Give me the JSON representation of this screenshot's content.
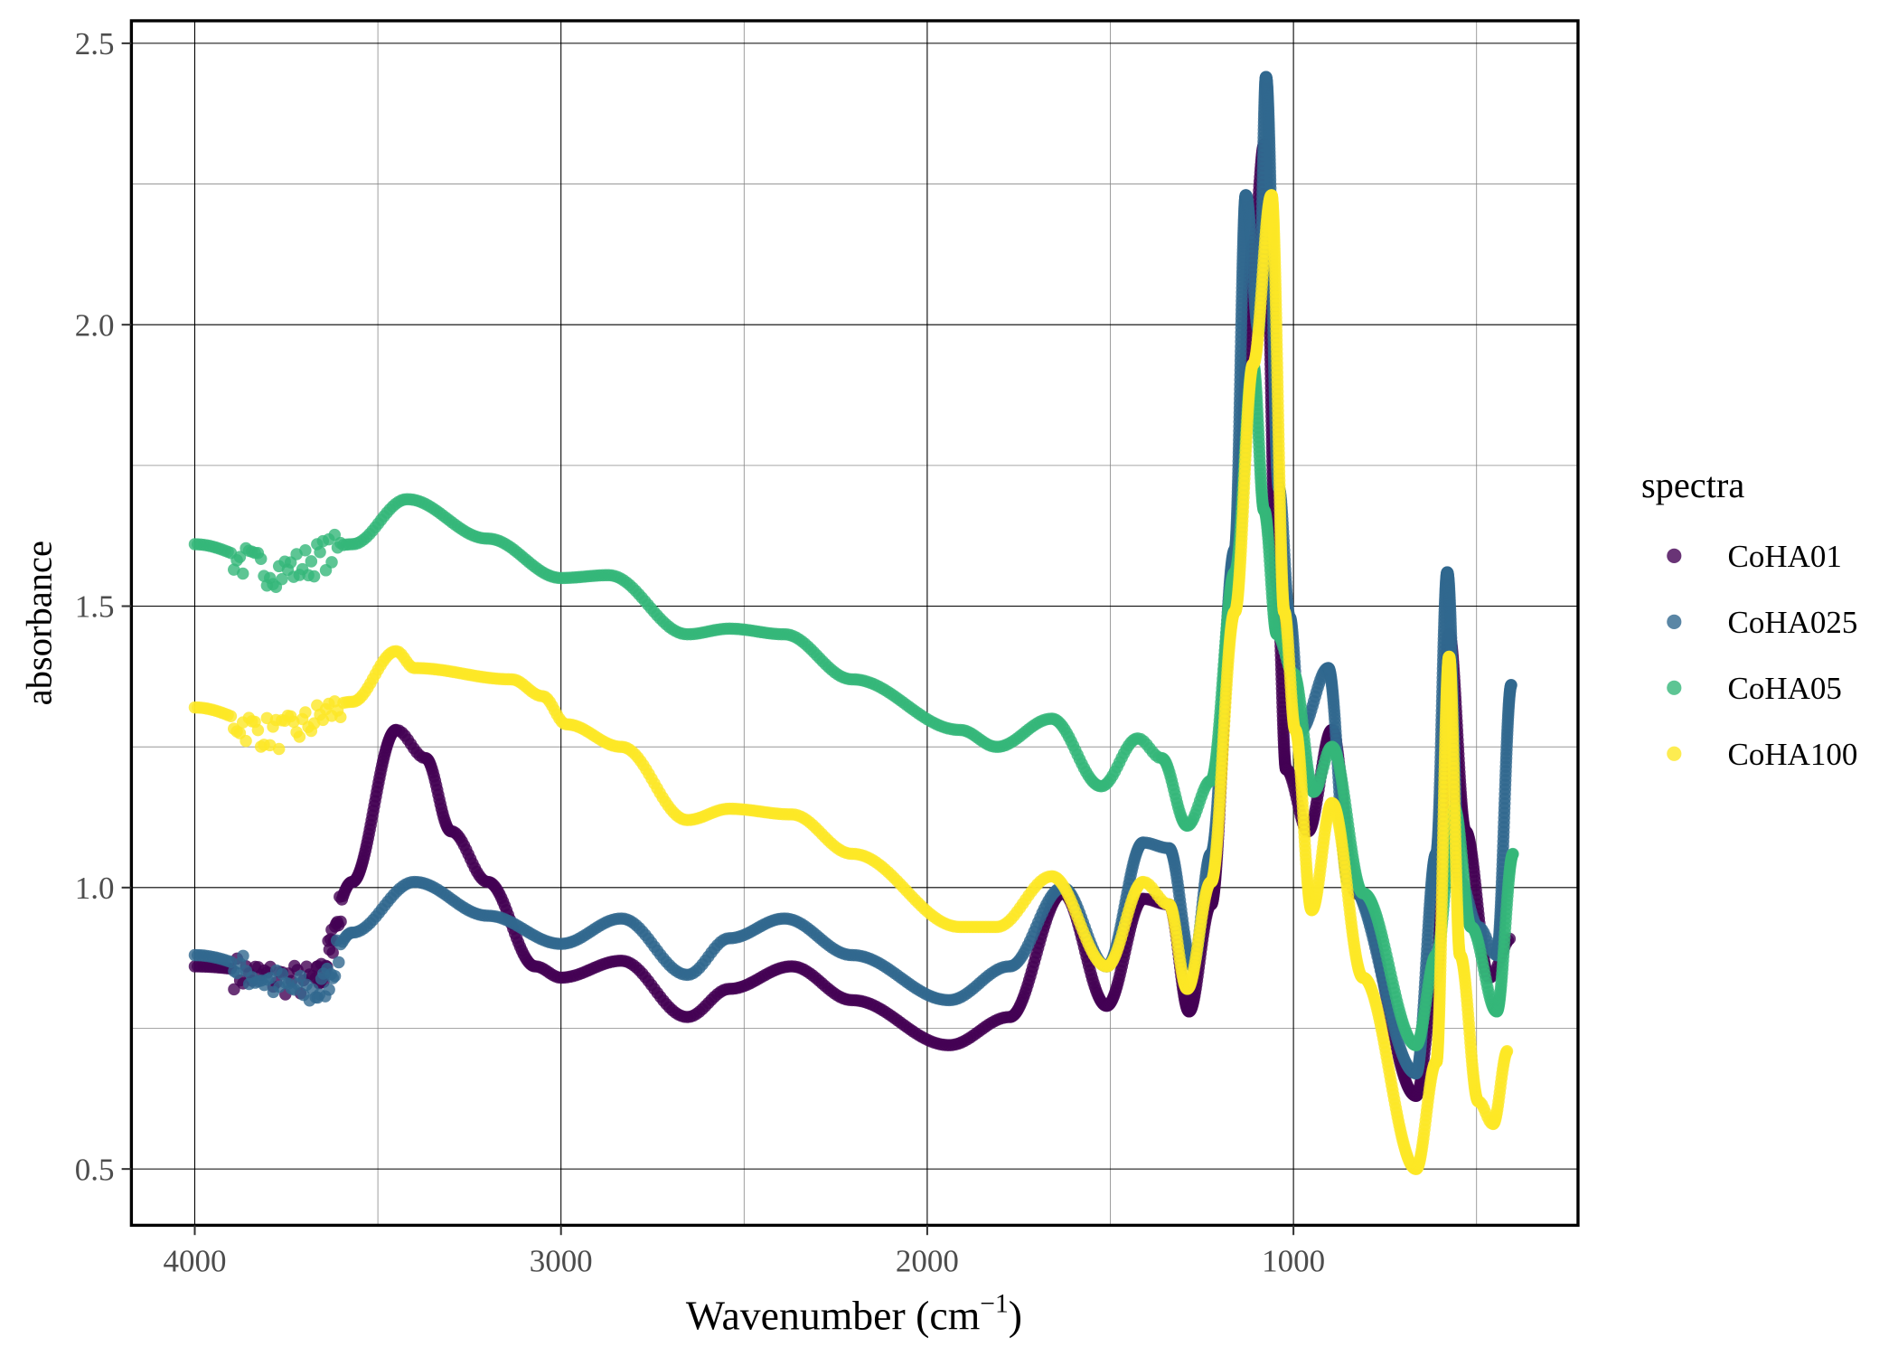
{
  "chart_data": {
    "type": "scatter",
    "xlabel": "Wavenumber (cm",
    "xlabel_sup": "−1",
    "xlabel_close": ")",
    "ylabel": "absorbance",
    "xlim": [
      4173,
      223
    ],
    "x_reversed": true,
    "ylim": [
      0.4,
      2.54
    ],
    "grid": true,
    "x_ticks": [
      "4000",
      "3000",
      "2000",
      "1000"
    ],
    "x_tick_values": [
      4000,
      3000,
      2000,
      1000
    ],
    "y_ticks": [
      "0.5",
      "1.0",
      "1.5",
      "2.0",
      "2.5"
    ],
    "y_tick_values": [
      0.5,
      1.0,
      1.5,
      2.0,
      2.5
    ],
    "legend": {
      "title": "spectra",
      "placement": "right"
    },
    "series": [
      {
        "name": "CoHA01",
        "color": "#440154",
        "points": [
          [
            4000,
            0.86
          ],
          [
            3670,
            0.84
          ],
          [
            3570,
            1.01
          ],
          [
            3450,
            1.28
          ],
          [
            3370,
            1.23
          ],
          [
            3300,
            1.1
          ],
          [
            3200,
            1.01
          ],
          [
            3070,
            0.86
          ],
          [
            3000,
            0.84
          ],
          [
            2835,
            0.87
          ],
          [
            2655,
            0.77
          ],
          [
            2540,
            0.82
          ],
          [
            2370,
            0.86
          ],
          [
            2205,
            0.8
          ],
          [
            1940,
            0.72
          ],
          [
            1775,
            0.77
          ],
          [
            1630,
            0.99
          ],
          [
            1510,
            0.79
          ],
          [
            1410,
            0.98
          ],
          [
            1340,
            0.97
          ],
          [
            1285,
            0.78
          ],
          [
            1225,
            0.97
          ],
          [
            1160,
            1.56
          ],
          [
            1110,
            2.14
          ],
          [
            1080,
            2.32
          ],
          [
            1045,
            1.54
          ],
          [
            1020,
            1.21
          ],
          [
            960,
            1.1
          ],
          [
            895,
            1.28
          ],
          [
            830,
            0.99
          ],
          [
            665,
            0.63
          ],
          [
            610,
            0.84
          ],
          [
            575,
            1.45
          ],
          [
            530,
            1.1
          ],
          [
            465,
            0.84
          ],
          [
            405,
            0.91
          ]
        ]
      },
      {
        "name": "CoHA025",
        "color": "#31688e",
        "points": [
          [
            4000,
            0.88
          ],
          [
            3670,
            0.82
          ],
          [
            3570,
            0.92
          ],
          [
            3400,
            1.01
          ],
          [
            3200,
            0.95
          ],
          [
            3000,
            0.9
          ],
          [
            2835,
            0.945
          ],
          [
            2655,
            0.845
          ],
          [
            2540,
            0.91
          ],
          [
            2390,
            0.945
          ],
          [
            2205,
            0.88
          ],
          [
            1940,
            0.8
          ],
          [
            1775,
            0.86
          ],
          [
            1630,
            1.0
          ],
          [
            1510,
            0.86
          ],
          [
            1410,
            1.08
          ],
          [
            1340,
            1.07
          ],
          [
            1275,
            0.86
          ],
          [
            1225,
            1.06
          ],
          [
            1160,
            1.6
          ],
          [
            1130,
            2.23
          ],
          [
            1095,
            1.99
          ],
          [
            1075,
            2.44
          ],
          [
            1040,
            1.71
          ],
          [
            1010,
            1.48
          ],
          [
            980,
            1.28
          ],
          [
            905,
            1.39
          ],
          [
            850,
            1.01
          ],
          [
            665,
            0.67
          ],
          [
            610,
            1.06
          ],
          [
            580,
            1.56
          ],
          [
            545,
            1.01
          ],
          [
            495,
            0.93
          ],
          [
            445,
            0.88
          ],
          [
            405,
            1.36
          ]
        ]
      },
      {
        "name": "CoHA05",
        "color": "#35b779",
        "points": [
          [
            4000,
            1.61
          ],
          [
            3770,
            1.57
          ],
          [
            3570,
            1.61
          ],
          [
            3420,
            1.69
          ],
          [
            3200,
            1.62
          ],
          [
            3000,
            1.55
          ],
          [
            2870,
            1.555
          ],
          [
            2655,
            1.45
          ],
          [
            2540,
            1.46
          ],
          [
            2390,
            1.45
          ],
          [
            2205,
            1.37
          ],
          [
            1910,
            1.28
          ],
          [
            1810,
            1.25
          ],
          [
            1660,
            1.3
          ],
          [
            1525,
            1.18
          ],
          [
            1425,
            1.265
          ],
          [
            1360,
            1.23
          ],
          [
            1290,
            1.11
          ],
          [
            1225,
            1.19
          ],
          [
            1160,
            1.56
          ],
          [
            1110,
            1.93
          ],
          [
            1080,
            1.67
          ],
          [
            1045,
            1.45
          ],
          [
            1000,
            1.38
          ],
          [
            945,
            1.17
          ],
          [
            895,
            1.25
          ],
          [
            810,
            0.99
          ],
          [
            665,
            0.72
          ],
          [
            610,
            0.88
          ],
          [
            560,
            1.14
          ],
          [
            515,
            0.93
          ],
          [
            445,
            0.78
          ],
          [
            400,
            1.06
          ]
        ]
      },
      {
        "name": "CoHA100",
        "color": "#fde725",
        "points": [
          [
            4000,
            1.32
          ],
          [
            3770,
            1.28
          ],
          [
            3570,
            1.33
          ],
          [
            3450,
            1.42
          ],
          [
            3400,
            1.39
          ],
          [
            3135,
            1.37
          ],
          [
            3050,
            1.34
          ],
          [
            2985,
            1.29
          ],
          [
            2835,
            1.25
          ],
          [
            2655,
            1.12
          ],
          [
            2540,
            1.14
          ],
          [
            2370,
            1.13
          ],
          [
            2205,
            1.06
          ],
          [
            1910,
            0.93
          ],
          [
            1810,
            0.93
          ],
          [
            1660,
            1.02
          ],
          [
            1510,
            0.86
          ],
          [
            1410,
            1.01
          ],
          [
            1340,
            0.97
          ],
          [
            1290,
            0.82
          ],
          [
            1225,
            1.01
          ],
          [
            1160,
            1.49
          ],
          [
            1110,
            1.93
          ],
          [
            1060,
            2.23
          ],
          [
            1025,
            1.49
          ],
          [
            995,
            1.28
          ],
          [
            950,
            0.96
          ],
          [
            895,
            1.15
          ],
          [
            810,
            0.84
          ],
          [
            665,
            0.5
          ],
          [
            610,
            0.69
          ],
          [
            575,
            1.41
          ],
          [
            545,
            0.88
          ],
          [
            495,
            0.62
          ],
          [
            455,
            0.58
          ],
          [
            415,
            0.71
          ]
        ]
      }
    ]
  }
}
